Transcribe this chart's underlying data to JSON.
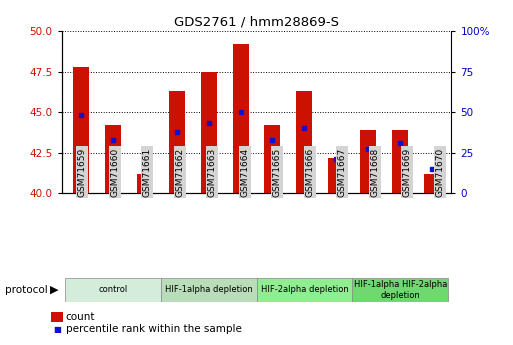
{
  "title": "GDS2761 / hmm28869-S",
  "samples": [
    "GSM71659",
    "GSM71660",
    "GSM71661",
    "GSM71662",
    "GSM71663",
    "GSM71664",
    "GSM71665",
    "GSM71666",
    "GSM71667",
    "GSM71668",
    "GSM71669",
    "GSM71670"
  ],
  "count_top": [
    47.8,
    44.2,
    41.2,
    46.3,
    47.5,
    49.2,
    44.2,
    46.3,
    42.2,
    43.9,
    43.9,
    41.2
  ],
  "count_bottom": [
    40.0,
    40.0,
    40.0,
    40.0,
    40.0,
    40.0,
    40.0,
    40.0,
    40.0,
    40.0,
    40.0,
    40.0
  ],
  "percentile_rank_pct": [
    48,
    33,
    15,
    38,
    43,
    50,
    33,
    40,
    21,
    27,
    31,
    15
  ],
  "ylim_left": [
    40,
    50
  ],
  "ylim_right": [
    0,
    100
  ],
  "yticks_left": [
    40,
    42.5,
    45,
    47.5,
    50
  ],
  "yticks_right": [
    0,
    25,
    50,
    75,
    100
  ],
  "ytick_labels_right": [
    "0",
    "25",
    "50",
    "75",
    "100%"
  ],
  "bar_color": "#cc1100",
  "dot_color": "#1111cc",
  "bar_width": 0.5,
  "protocol_groups": [
    {
      "label": "control",
      "start": 0,
      "end": 2,
      "color": "#d4edda"
    },
    {
      "label": "HIF-1alpha depletion",
      "start": 3,
      "end": 5,
      "color": "#b8ddb8"
    },
    {
      "label": "HIF-2alpha depletion",
      "start": 6,
      "end": 8,
      "color": "#90ee90"
    },
    {
      "label": "HIF-1alpha HIF-2alpha\ndepletion",
      "start": 9,
      "end": 11,
      "color": "#70d870"
    }
  ],
  "legend_items": [
    {
      "label": "count",
      "color": "#cc1100"
    },
    {
      "label": "percentile rank within the sample",
      "color": "#1111cc"
    }
  ],
  "tick_label_color_left": "#cc1100",
  "tick_label_color_right": "#0000cc",
  "xtick_bg": "#d4d4d4"
}
